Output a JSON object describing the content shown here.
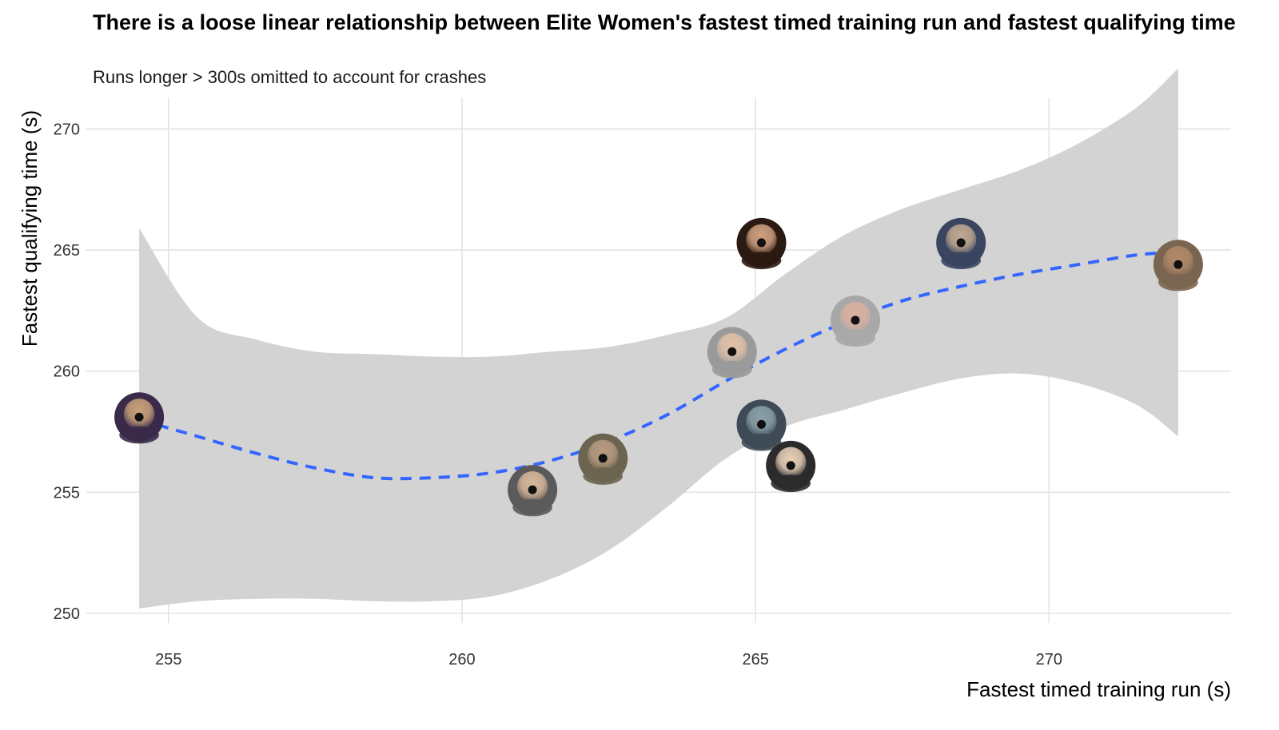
{
  "title": "There is a loose linear relationship between Elite Women's fastest timed training run and fastest qualifying time",
  "subtitle": "Runs longer > 300s omitted to account for crashes",
  "chart_data": {
    "type": "scatter",
    "title": "There is a loose linear relationship between Elite Women's fastest timed training run and fastest qualifying time",
    "subtitle": "Runs longer > 300s omitted to account for crashes",
    "xlabel": "Fastest timed training run (s)",
    "ylabel": "Fastest qualifying time (s)",
    "xlim": [
      253.6,
      273.1
    ],
    "ylim": [
      249.6,
      271.3
    ],
    "x_ticks": [
      "255",
      "260",
      "265",
      "270"
    ],
    "y_ticks": [
      "250",
      "255",
      "260",
      "265",
      "270"
    ],
    "grid": true,
    "points": [
      {
        "x": 254.5,
        "y": 258.1
      },
      {
        "x": 261.2,
        "y": 255.1
      },
      {
        "x": 262.4,
        "y": 256.4
      },
      {
        "x": 264.6,
        "y": 260.8
      },
      {
        "x": 265.1,
        "y": 265.3
      },
      {
        "x": 265.1,
        "y": 257.8
      },
      {
        "x": 265.6,
        "y": 256.1
      },
      {
        "x": 266.7,
        "y": 262.1
      },
      {
        "x": 268.5,
        "y": 265.3
      },
      {
        "x": 272.2,
        "y": 264.4
      }
    ],
    "smooth": {
      "style": "dashed",
      "color": "#3366FF",
      "x": [
        254.5,
        255.5,
        256.5,
        257.5,
        258.5,
        259.5,
        260.5,
        261.5,
        262.5,
        263.5,
        264.5,
        265.5,
        266.5,
        267.5,
        268.5,
        269.5,
        270.5,
        271.5,
        272.2
      ],
      "y": [
        258.0,
        257.3,
        256.6,
        256.0,
        255.6,
        255.6,
        255.8,
        256.3,
        257.1,
        258.2,
        259.6,
        260.9,
        262.0,
        262.9,
        263.5,
        264.0,
        264.4,
        264.8,
        264.9
      ],
      "ci_lower": [
        250.2,
        250.5,
        250.6,
        250.6,
        250.5,
        250.5,
        250.7,
        251.4,
        252.6,
        254.4,
        256.4,
        257.7,
        258.4,
        259.1,
        259.7,
        259.9,
        259.5,
        258.6,
        257.3
      ],
      "ci_upper": [
        265.9,
        262.2,
        261.3,
        260.8,
        260.7,
        260.6,
        260.6,
        260.8,
        261.0,
        261.5,
        262.2,
        264.0,
        265.6,
        266.7,
        267.5,
        268.3,
        269.4,
        270.9,
        272.5
      ]
    },
    "colors": {
      "smooth_line": "#3366FF",
      "ci_band": "#d3d3d3",
      "grid": "#e3e3e3"
    }
  }
}
